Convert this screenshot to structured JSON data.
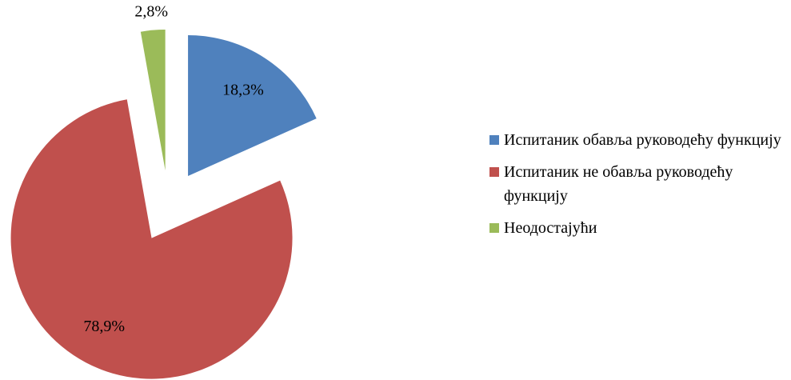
{
  "chart_data": {
    "type": "pie",
    "categories": [
      "Испитаник обавља руководећу функцију",
      "Испитаник не обавља руководећу функцију",
      "Неодостајући"
    ],
    "values": [
      18.3,
      78.9,
      2.8
    ],
    "value_labels": [
      "18,3%",
      "78,9%",
      "2,8%"
    ],
    "colors": [
      "#4f81bd",
      "#c0504d",
      "#9bbb59"
    ],
    "legend": "right"
  }
}
